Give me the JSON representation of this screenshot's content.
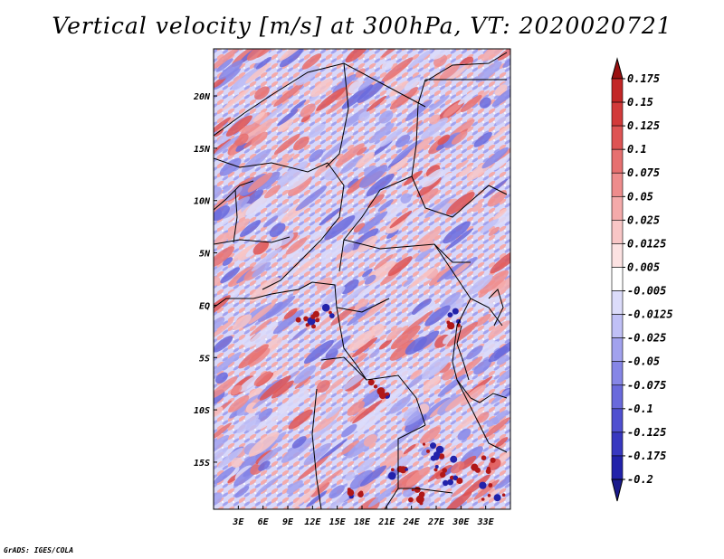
{
  "title": "Vertical velocity [m/s] at 300hPa, VT: 2020020721",
  "credit": "GrADS: IGES/COLA",
  "map": {
    "lon_range": [
      0,
      36
    ],
    "lat_range": [
      -19.5,
      24.5
    ],
    "lon_ticks": [
      {
        "value": 3,
        "label": "3E"
      },
      {
        "value": 6,
        "label": "6E"
      },
      {
        "value": 9,
        "label": "9E"
      },
      {
        "value": 12,
        "label": "12E"
      },
      {
        "value": 15,
        "label": "15E"
      },
      {
        "value": 18,
        "label": "18E"
      },
      {
        "value": 21,
        "label": "21E"
      },
      {
        "value": 24,
        "label": "24E"
      },
      {
        "value": 27,
        "label": "27E"
      },
      {
        "value": 30,
        "label": "30E"
      },
      {
        "value": 33,
        "label": "33E"
      }
    ],
    "lat_ticks": [
      {
        "value": 20,
        "label": "20N"
      },
      {
        "value": 15,
        "label": "15N"
      },
      {
        "value": 10,
        "label": "10N"
      },
      {
        "value": 5,
        "label": "5N"
      },
      {
        "value": 0,
        "label": "EQ"
      },
      {
        "value": -5,
        "label": "5S"
      },
      {
        "value": -10,
        "label": "10S"
      },
      {
        "value": -15,
        "label": "15S"
      }
    ]
  },
  "colorbar": {
    "levels": [
      {
        "label": "0.175",
        "color": "#b01818"
      },
      {
        "label": "0.15",
        "color": "#c22626"
      },
      {
        "label": "0.125",
        "color": "#d23a3a"
      },
      {
        "label": "0.1",
        "color": "#de5454"
      },
      {
        "label": "0.075",
        "color": "#e67070"
      },
      {
        "label": "0.05",
        "color": "#ee8c8c"
      },
      {
        "label": "0.025",
        "color": "#f4aaaa"
      },
      {
        "label": "0.0125",
        "color": "#f8c6c6"
      },
      {
        "label": "0.005",
        "color": "#fce2e2"
      },
      {
        "label": "-0.005",
        "color": "#ffffff"
      },
      {
        "label": "-0.0125",
        "color": "#dcdcfa"
      },
      {
        "label": "-0.025",
        "color": "#c0c0f6"
      },
      {
        "label": "-0.05",
        "color": "#a2a2ee"
      },
      {
        "label": "-0.075",
        "color": "#8686e6"
      },
      {
        "label": "-0.1",
        "color": "#6a6adc"
      },
      {
        "label": "-0.125",
        "color": "#5050d0"
      },
      {
        "label": "-0.175",
        "color": "#3838c0"
      },
      {
        "label": "-0.2",
        "color": "#2222aa"
      }
    ],
    "top_color": "#9a1010",
    "bottom_color": "#1a1a8c"
  }
}
